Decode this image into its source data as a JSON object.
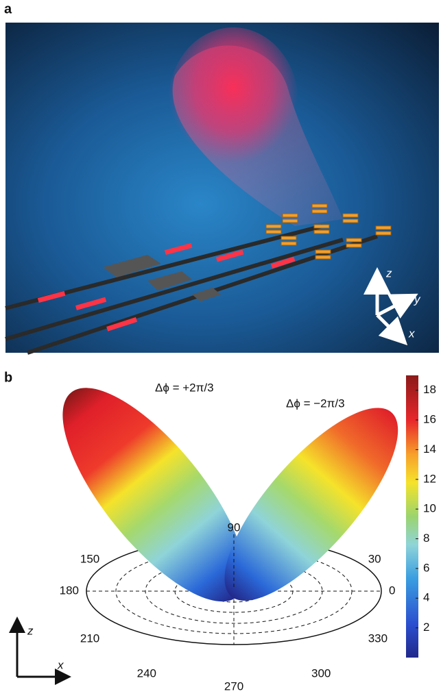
{
  "panel_a": {
    "label": "a",
    "axes": {
      "z": "z",
      "y": "y",
      "x": "x"
    }
  },
  "panel_b": {
    "label": "b",
    "annotations": [
      "Δϕ = +2π/3",
      "Δϕ = −2π/3"
    ],
    "polar_ticks": [
      90,
      30,
      0,
      330,
      300,
      270,
      240,
      210,
      180,
      150
    ],
    "colorbar": {
      "lim": [
        0,
        19
      ],
      "ticks": [
        2,
        4,
        6,
        8,
        10,
        12,
        14,
        16,
        18
      ]
    },
    "axes": {
      "z": "z",
      "x": "x"
    }
  }
}
